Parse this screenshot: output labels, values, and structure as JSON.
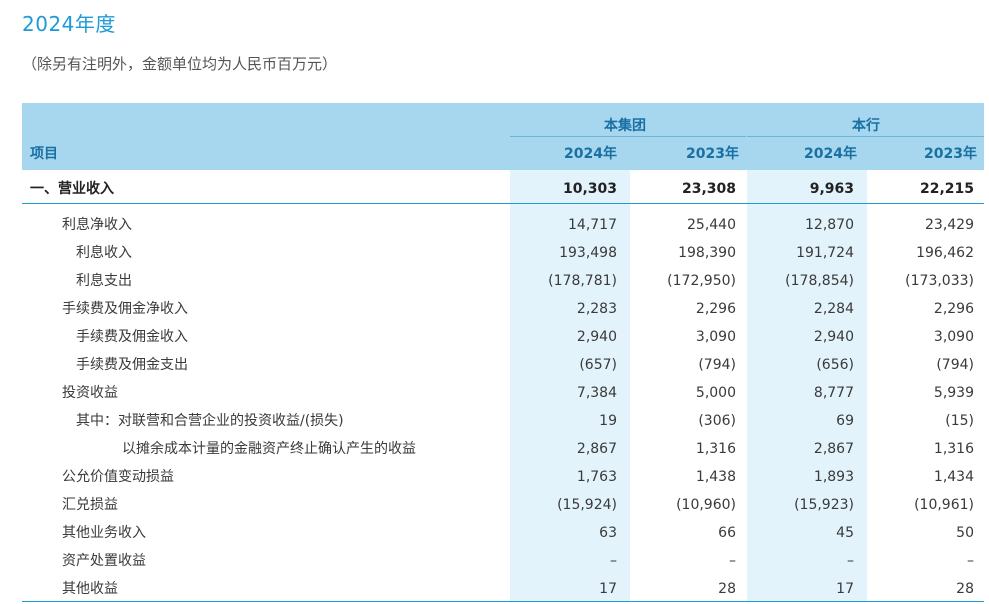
{
  "page": {
    "title": "2024年度",
    "subtitle": "（除另有注明外，金额单位均为人民币百万元）"
  },
  "table": {
    "header": {
      "item_label": "项目",
      "group_label": "本集团",
      "bank_label": "本行",
      "years": [
        "2024年",
        "2023年",
        "2024年",
        "2023年"
      ]
    },
    "rows": [
      {
        "label": "一、营业收入",
        "values": [
          "10,303",
          "23,308",
          "9,963",
          "22,215"
        ]
      },
      {
        "label": "利息净收入",
        "values": [
          "14,717",
          "25,440",
          "12,870",
          "23,429"
        ]
      },
      {
        "label": "利息收入",
        "values": [
          "193,498",
          "198,390",
          "191,724",
          "196,462"
        ]
      },
      {
        "label": "利息支出",
        "values": [
          "(178,781)",
          "(172,950)",
          "(178,854)",
          "(173,033)"
        ]
      },
      {
        "label": "手续费及佣金净收入",
        "values": [
          "2,283",
          "2,296",
          "2,284",
          "2,296"
        ]
      },
      {
        "label": "手续费及佣金收入",
        "values": [
          "2,940",
          "3,090",
          "2,940",
          "3,090"
        ]
      },
      {
        "label": "手续费及佣金支出",
        "values": [
          "(657)",
          "(794)",
          "(656)",
          "(794)"
        ]
      },
      {
        "label": "投资收益",
        "values": [
          "7,384",
          "5,000",
          "8,777",
          "5,939"
        ]
      },
      {
        "label": "其中：对联营和合营企业的投资收益/(损失)",
        "values": [
          "19",
          "(306)",
          "69",
          "(15)"
        ]
      },
      {
        "label": "以摊余成本计量的金融资产终止确认产生的收益",
        "values": [
          "2,867",
          "1,316",
          "2,867",
          "1,316"
        ]
      },
      {
        "label": "公允价值变动损益",
        "values": [
          "1,763",
          "1,438",
          "1,893",
          "1,434"
        ]
      },
      {
        "label": "汇兑损益",
        "values": [
          "(15,924)",
          "(10,960)",
          "(15,923)",
          "(10,961)"
        ]
      },
      {
        "label": "其他业务收入",
        "values": [
          "63",
          "66",
          "45",
          "50"
        ]
      },
      {
        "label": "资产处置收益",
        "values": [
          "–",
          "–",
          "–",
          "–"
        ]
      },
      {
        "label": "其他收益",
        "values": [
          "17",
          "28",
          "17",
          "28"
        ]
      }
    ]
  },
  "colors": {
    "accent": "#1e9ad6",
    "header_bg": "#a6d7ee",
    "highlight_col": "#e3f3fb"
  }
}
